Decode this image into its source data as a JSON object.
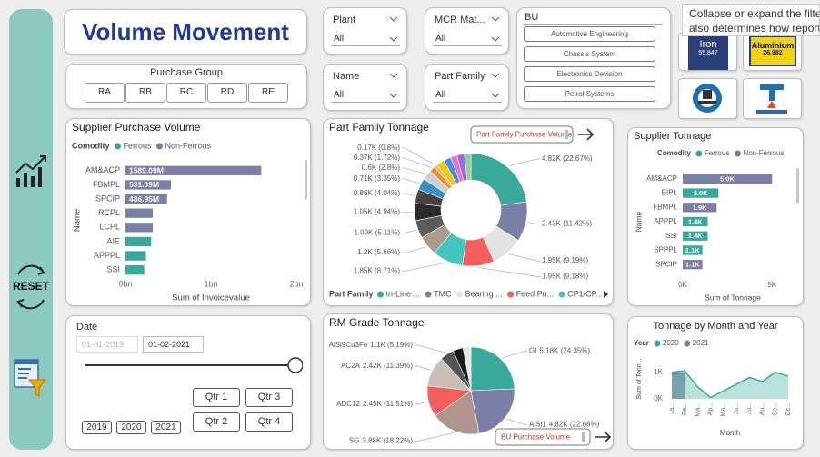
{
  "sidebar": {
    "reset": "RESET"
  },
  "header": {
    "title": "Volume Movement"
  },
  "slicers": {
    "plant": {
      "label": "Plant",
      "value": "All"
    },
    "mcr": {
      "label": "MCR Mat...",
      "value": "All"
    },
    "name": {
      "label": "Name",
      "value": "All"
    },
    "part_family": {
      "label": "Part Family",
      "value": "All"
    },
    "bu": {
      "label": "BU",
      "options": [
        "Automotive Engineering",
        "Chassis System",
        "Electronics Devision",
        "Petrol Systems"
      ]
    },
    "purchase_group": {
      "label": "Purchase Group",
      "options": [
        "RA",
        "RB",
        "RC",
        "RD",
        "RE"
      ]
    },
    "date": {
      "label": "Date",
      "start": "01-01-2019",
      "end": "01-02-2021",
      "quarters": [
        "Qtr 1",
        "Qtr 2",
        "Qtr 3",
        "Qtr 4"
      ],
      "years": [
        "2019",
        "2020",
        "2021"
      ]
    }
  },
  "tooltip": {
    "lines": [
      "Collapse or expand the filte",
      "also determines how report"
    ]
  },
  "tiles": {
    "iron": {
      "label": "Iron",
      "value": "55.847"
    },
    "aluminium": {
      "label": "Aluminium",
      "value": "26.982"
    }
  },
  "buttons": {
    "part_family": "Part Family Purchase Volume",
    "bu": "BU Purchase Volume"
  },
  "chart_data": [
    {
      "type": "hbar",
      "title": "Supplier Purchase Volume",
      "legend_title": "Comodity",
      "categories": [
        "AM&ACP",
        "FBMPL",
        "SPCIP",
        "RCPL",
        "LCPL",
        "AIE",
        "APPPL",
        "SSI"
      ],
      "series": [
        {
          "name": "Ferrous",
          "color": "#3aa89a",
          "values": [
            null,
            null,
            null,
            null,
            null,
            0.3,
            0.24,
            0.22
          ]
        },
        {
          "name": "Non-Ferrous",
          "color": "#7b7fa8",
          "values": [
            1.58909,
            0.53109,
            0.48695,
            0.32,
            0.32,
            null,
            null,
            null
          ],
          "value_labels": [
            "1589.09M",
            "531.09M",
            "486.95M",
            null,
            null,
            null,
            null,
            null
          ]
        }
      ],
      "xlim": [
        0,
        2
      ],
      "xticks": [
        {
          "value": 0,
          "label": "0bn"
        },
        {
          "value": 1,
          "label": "1bn"
        },
        {
          "value": 2,
          "label": "2bn"
        }
      ],
      "xlabel": "Sum of Invoicevalue",
      "ylabel": "Name"
    },
    {
      "type": "donut",
      "title": "Part Family Tonnage",
      "legend_title": "Part Family",
      "categories": [
        "In-Line ...",
        "TMC",
        "Bearing ...",
        "Feed Pu...",
        "CP1/CP...",
        null,
        null,
        null,
        null,
        null,
        null,
        null,
        null,
        null,
        null,
        null,
        null,
        null
      ],
      "values": [
        4820,
        2430,
        1950,
        1950,
        1850,
        1200,
        1090,
        1050,
        860,
        710,
        600,
        370,
        170,
        500,
        450,
        400,
        450,
        400
      ],
      "value_labels": [
        "4.82K (22.67%)",
        "2.43K (11.42%)",
        "1.95K (9.19%)",
        "1.95K (9.18%)",
        "1.85K (8.71%)",
        "1.2K (5.66%)",
        "1.09K (5.11%)",
        "1.05K (4.94%)",
        "0.86K (4.04%)",
        "0.71K (3.35%)",
        "0.6K (2.8%)",
        "0.37K (1.72%)",
        "0.17K (0.8%)",
        null,
        null,
        null,
        null,
        null
      ],
      "colors": [
        "#3aa89a",
        "#7b7fa8",
        "#e3e3e3",
        "#f25f5c",
        "#45c4bf",
        "#a89b8f",
        "#5c5c5c",
        "#2b2b2b",
        "#444444",
        "#3a8fc4",
        "#cfcfcf",
        "#f28e2b",
        "#d9b26f",
        "#f2c811",
        "#4a90e2",
        "#e377c2",
        "#9c6ade",
        "#8fd19e"
      ]
    },
    {
      "type": "hbar",
      "title": "Supplier Tonnage",
      "legend_title": "Comodity",
      "categories": [
        "AM&ACP",
        "BIPL",
        "FBMPL",
        "APPPL",
        "SSI",
        "SPPPL",
        "SPCIP"
      ],
      "series": [
        {
          "name": "Ferrous",
          "color": "#3aa89a",
          "values": [
            null,
            2.0,
            null,
            1.4,
            1.4,
            1.1,
            null
          ],
          "value_labels": [
            null,
            "2.0K",
            null,
            "1.4K",
            "1.4K",
            "1.1K",
            null
          ]
        },
        {
          "name": "Non-Ferrous",
          "color": "#7b7fa8",
          "values": [
            5.0,
            null,
            1.9,
            null,
            null,
            null,
            1.1
          ],
          "value_labels": [
            "5.0K",
            null,
            "1.9K",
            null,
            null,
            null,
            "1.1K"
          ]
        }
      ],
      "xlim": [
        0,
        5.6
      ],
      "xticks": [
        {
          "value": 0,
          "label": "0K"
        },
        {
          "value": 5,
          "label": "5K"
        }
      ],
      "xlabel": "Sum of Tonnage",
      "ylabel": "Name"
    },
    {
      "type": "pie",
      "title": "RM Grade Tonnage",
      "categories": [
        "GI",
        "AlSi1",
        "SG",
        "ADC12",
        "AC2A",
        "AlSi9Cu3Fe",
        null,
        null
      ],
      "values": [
        5180,
        4820,
        3880,
        2450,
        2420,
        1100,
        800,
        620
      ],
      "value_labels": [
        "5.18K (24.35%)",
        "4.82K (22.68%)",
        "3.88K (18.22%)",
        "2.45K (11.51%)",
        "2.42K (11.39%)",
        "1.1K (5.19%)",
        null,
        null
      ],
      "colors": [
        "#3aa89a",
        "#7b7fa8",
        "#b0958f",
        "#f25f5c",
        "#c9bfb5",
        "#555555",
        "#1a1a1a",
        "#e6e6e6"
      ]
    },
    {
      "type": "area",
      "title": "Tonnage by Month and Year",
      "legend_title": "Year",
      "categories": [
        "Ja...",
        "Fe...",
        "Ma...",
        "Ap...",
        "Ma...",
        "Ju...",
        "Ju...",
        "Au...",
        "Se...",
        "Oc..."
      ],
      "series": [
        {
          "name": "2020",
          "color": "#3aa89a",
          "values": [
            1.0,
            1.05,
            0.45,
            0.05,
            0.3,
            0.55,
            0.8,
            0.65,
            1.0,
            0.85
          ]
        },
        {
          "name": "2021",
          "color": "#7b7fa8",
          "values": [
            0.95,
            0.95,
            null,
            null,
            null,
            null,
            null,
            null,
            null,
            null
          ]
        }
      ],
      "ylim": [
        0,
        1.5
      ],
      "yticks": [
        {
          "value": 0,
          "label": "0K"
        },
        {
          "value": 1,
          "label": "1K"
        }
      ],
      "xlabel": "Month",
      "ylabel": "Sum of Tonn..."
    }
  ]
}
